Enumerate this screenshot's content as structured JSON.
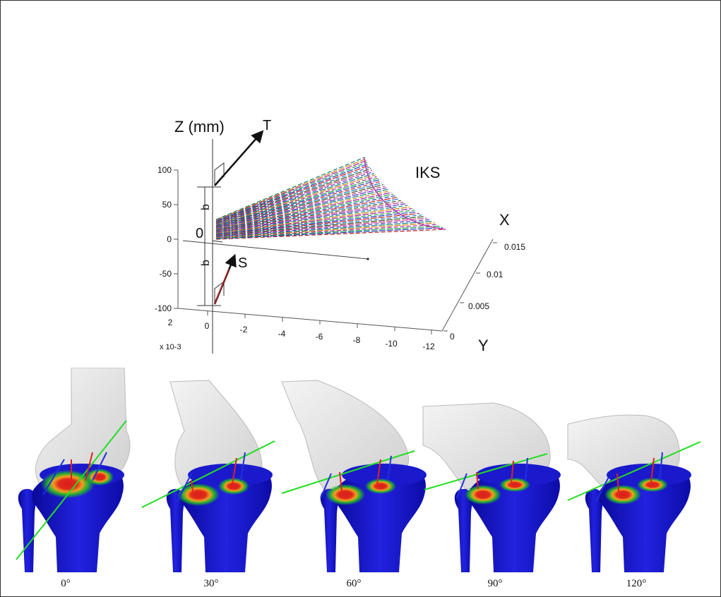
{
  "plot": {
    "z_axis_label": "Z (mm)",
    "x_axis_label": "X",
    "y_axis_label": "Y",
    "vector_t": "T",
    "vector_s": "S",
    "surface_label": "IKS",
    "origin_label": "0",
    "offset_label_upper": "b",
    "offset_label_lower": "b",
    "z_ticks": [
      "100",
      "50",
      "0",
      "-50",
      "-100"
    ],
    "x_ticks": [
      "0.015",
      "0.01",
      "0.005",
      "0"
    ],
    "y_ticks": [
      "2",
      "0",
      "-2",
      "-4",
      "-6",
      "-8",
      "-10",
      "-12"
    ],
    "y_multiplier": "x 10-3"
  },
  "panels": [
    {
      "angle": "0°"
    },
    {
      "angle": "30°"
    },
    {
      "angle": "60°"
    },
    {
      "angle": "90°"
    },
    {
      "angle": "120°"
    }
  ],
  "colors": {
    "tibia": "#1f1fd6",
    "femur": "#e6e6e6",
    "axis_line": "#22dd22",
    "contact_hot": "#d81e1e",
    "contact_warm": "#f0a020",
    "contact_cool": "#22b030",
    "marker_red": "#e02020",
    "marker_blue": "#2030e0"
  }
}
